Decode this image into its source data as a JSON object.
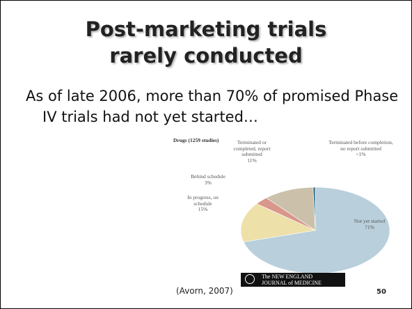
{
  "slide": {
    "title": [
      "Post-marketing trials",
      "rarely conducted"
    ],
    "body": "As of late 2006, more than 70% of promised Phase IV trials had not yet started…",
    "citation": "(Avorn, 2007)",
    "page_number": "50",
    "logo": [
      "The NEW ENGLAND",
      "JOURNAL of MEDICINE"
    ]
  },
  "chart_data": {
    "type": "pie",
    "title": "Drugs (1259 studies)",
    "series": [
      {
        "name": "Terminated before completion, no report submitted",
        "color": "#2f6d8c",
        "values": [
          0.5
        ],
        "value_labels": [
          "<1%"
        ]
      },
      {
        "name": "Not yet started",
        "color": "#b9cfdc",
        "values": [
          71
        ],
        "value_labels": [
          "71%"
        ]
      },
      {
        "name": "In progress, on schedule",
        "color": "#ede0a8",
        "values": [
          15
        ],
        "value_labels": [
          "15%"
        ]
      },
      {
        "name": "Behind schedule",
        "color": "#d9968b",
        "values": [
          3
        ],
        "value_labels": [
          "3%"
        ]
      },
      {
        "name": "Terminated or completed, report submitted",
        "color": "#cbc1aa",
        "values": [
          11
        ],
        "value_labels": [
          "11%"
        ]
      }
    ]
  }
}
